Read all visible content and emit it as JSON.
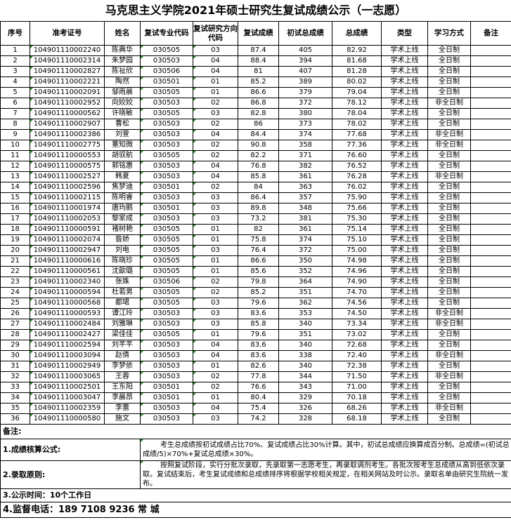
{
  "title": "马克思主义学院2021年硕士研究生复试成绩公示（一志愿）",
  "headers": [
    "序号",
    "准考证号",
    "姓名",
    "复试专业代码",
    "复试研究方向代码",
    "复试成绩",
    "初试总成绩",
    "总成绩",
    "类型",
    "学习方式",
    "备注"
  ],
  "rows": [
    [
      "1",
      "104901110002240",
      "陈典华",
      "030505",
      "03",
      "87.4",
      "405",
      "82.92",
      "学术上线",
      "全日制",
      ""
    ],
    [
      "2",
      "104901110002314",
      "朱梦园",
      "030503",
      "04",
      "88.4",
      "394",
      "81.68",
      "学术上线",
      "全日制",
      ""
    ],
    [
      "3",
      "104901110002827",
      "陈祉欣",
      "030506",
      "04",
      "81",
      "407",
      "81.28",
      "学术上线",
      "全日制",
      ""
    ],
    [
      "4",
      "104901110002221",
      "陶然",
      "030501",
      "01",
      "85.2",
      "389",
      "80.02",
      "学术上线",
      "全日制",
      ""
    ],
    [
      "5",
      "104901110002091",
      "邹雨晨",
      "030505",
      "01",
      "86.6",
      "379",
      "79.04",
      "学术上线",
      "全日制",
      ""
    ],
    [
      "6",
      "104901110002952",
      "向姣姣",
      "030503",
      "02",
      "86.8",
      "372",
      "78.12",
      "学术上线",
      "非全日制",
      ""
    ],
    [
      "7",
      "104901110000562",
      "许晓敏",
      "030505",
      "03",
      "82.8",
      "380",
      "78.04",
      "学术上线",
      "全日制",
      ""
    ],
    [
      "8",
      "104901110002907",
      "曹松",
      "030503",
      "02",
      "86",
      "373",
      "78.02",
      "学术上线",
      "全日制",
      ""
    ],
    [
      "9",
      "104901110002386",
      "刘萱",
      "030503",
      "04",
      "84.4",
      "374",
      "77.68",
      "学术上线",
      "非全日制",
      ""
    ],
    [
      "10",
      "104901110002775",
      "董知微",
      "030503",
      "02",
      "90.8",
      "358",
      "77.36",
      "学术上线",
      "非全日制",
      ""
    ],
    [
      "11",
      "104901110000553",
      "胡驭航",
      "030505",
      "02",
      "82.2",
      "371",
      "76.60",
      "学术上线",
      "全日制",
      ""
    ],
    [
      "12",
      "104901110000575",
      "郭铭惠",
      "030503",
      "04",
      "76.8",
      "382",
      "76.52",
      "学术上线",
      "全日制",
      ""
    ],
    [
      "13",
      "104901110002527",
      "韩夏",
      "030503",
      "04",
      "85.8",
      "361",
      "76.28",
      "学术上线",
      "非全日制",
      ""
    ],
    [
      "14",
      "104901110002596",
      "焦梦迪",
      "030501",
      "02",
      "84",
      "363",
      "76.02",
      "学术上线",
      "全日制",
      ""
    ],
    [
      "15",
      "104901110002115",
      "陈明睿",
      "030503",
      "03",
      "86.4",
      "357",
      "75.90",
      "学术上线",
      "全日制",
      ""
    ],
    [
      "16",
      "104901110001974",
      "唐玙鹅",
      "030501",
      "03",
      "89.8",
      "348",
      "75.66",
      "学术上线",
      "全日制",
      ""
    ],
    [
      "17",
      "104901110002053",
      "黎家成",
      "030503",
      "03",
      "73.2",
      "381",
      "75.30",
      "学术上线",
      "全日制",
      ""
    ],
    [
      "18",
      "104901110000591",
      "褚树艳",
      "030505",
      "01",
      "82",
      "361",
      "75.14",
      "学术上线",
      "全日制",
      ""
    ],
    [
      "19",
      "104901110002074",
      "昝娇",
      "030505",
      "01",
      "75.8",
      "374",
      "75.10",
      "学术上线",
      "全日制",
      ""
    ],
    [
      "20",
      "104901110002947",
      "刘电",
      "030505",
      "03",
      "76.4",
      "372",
      "75.00",
      "学术上线",
      "全日制",
      ""
    ],
    [
      "21",
      "104901110000616",
      "陈晓珍",
      "030505",
      "01",
      "86.6",
      "350",
      "74.98",
      "学术上线",
      "全日制",
      ""
    ],
    [
      "22",
      "104901110000561",
      "沈歆璐",
      "030505",
      "01",
      "85.6",
      "352",
      "74.96",
      "学术上线",
      "全日制",
      ""
    ],
    [
      "23",
      "104901110002340",
      "张姝",
      "030506",
      "02",
      "79.8",
      "364",
      "74.90",
      "学术上线",
      "全日制",
      ""
    ],
    [
      "24",
      "104901110000594",
      "杜若男",
      "030505",
      "02",
      "85.2",
      "351",
      "74.70",
      "学术上线",
      "全日制",
      ""
    ],
    [
      "25",
      "104901110000568",
      "都珺",
      "030505",
      "03",
      "79.6",
      "362",
      "74.56",
      "学术上线",
      "全日制",
      ""
    ],
    [
      "26",
      "104901110000593",
      "谭江玲",
      "030503",
      "03",
      "83.6",
      "353",
      "74.50",
      "学术上线",
      "非全日制",
      ""
    ],
    [
      "27",
      "104901110002484",
      "刘雅琳",
      "030503",
      "03",
      "85.8",
      "340",
      "73.34",
      "学术上线",
      "非全日制",
      ""
    ],
    [
      "28",
      "104901110002427",
      "梁佳佳",
      "030505",
      "01",
      "79.6",
      "351",
      "73.02",
      "学术上线",
      "全日制",
      ""
    ],
    [
      "29",
      "104901110002594",
      "刘芊芊",
      "030503",
      "04",
      "83.6",
      "340",
      "72.68",
      "学术上线",
      "全日制",
      ""
    ],
    [
      "30",
      "104901110003094",
      "赵倩",
      "030503",
      "04",
      "83.6",
      "338",
      "72.40",
      "学术上线",
      "非全日制",
      ""
    ],
    [
      "31",
      "104901110002949",
      "李梦依",
      "030503",
      "01",
      "82.6",
      "340",
      "72.38",
      "学术上线",
      "全日制",
      ""
    ],
    [
      "32",
      "104901110003065",
      "王蓉",
      "030503",
      "02",
      "77.8",
      "344",
      "71.50",
      "学术上线",
      "非全日制",
      ""
    ],
    [
      "33",
      "104901110002501",
      "王东阳",
      "030501",
      "02",
      "76.6",
      "343",
      "71.00",
      "学术上线",
      "全日制",
      ""
    ],
    [
      "34",
      "104901110003047",
      "李晨昂",
      "030501",
      "01",
      "80.4",
      "329",
      "70.18",
      "学术上线",
      "全日制",
      ""
    ],
    [
      "35",
      "104901110002359",
      "李蕾",
      "030503",
      "04",
      "75.4",
      "326",
      "68.26",
      "学术上线",
      "非全日制",
      ""
    ],
    [
      "36",
      "104901110000580",
      "施文",
      "030503",
      "03",
      "74.2",
      "328",
      "68.18",
      "学术上线",
      "全日制",
      ""
    ]
  ],
  "notes": {
    "label": "备注:",
    "formula_label": "1.成绩核算公式:",
    "formula_text": "考生总成绩按初试成绩占比70%、复试成绩占比30%计算。其中，初试总成绩应换算成百分制。总成绩=(初试总成绩/5)×70%+复试总成绩×30%。",
    "rule_label": "2.录取原则:",
    "rule_text": "按照复试阶段，实行分批次录取，先录取第一志愿考生，再录取调剂考生。各批次按考生总成绩从高到低依次录取。复试结束后，考生复试成绩和总成绩排序将根据学校相关规定，在相关网站及时公示。录取名单由研究生院统一发布。",
    "period": "3.公示时间：10个工作日",
    "phone": "4.监督电话：189 7108 9236 常 城"
  }
}
